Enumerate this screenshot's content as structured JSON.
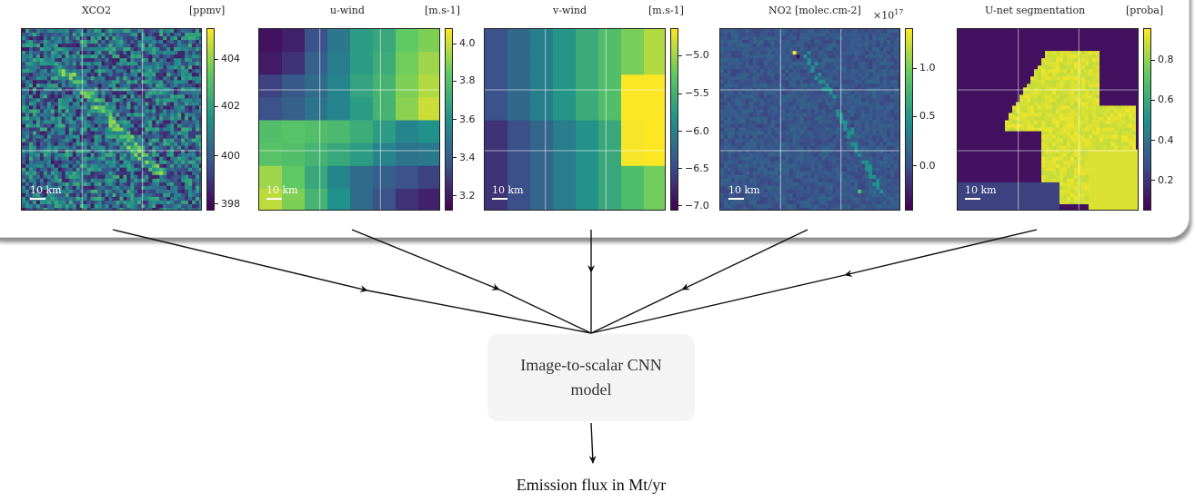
{
  "panels": [
    {
      "title": "XCO2",
      "unit": "[ppmv]",
      "scale_label": "10 km",
      "ticks": [
        {
          "label": "404",
          "frac": 0.17
        },
        {
          "label": "402",
          "frac": 0.43
        },
        {
          "label": "400",
          "frac": 0.7
        },
        {
          "label": "398",
          "frac": 0.965
        }
      ]
    },
    {
      "title": "u-wind",
      "unit": "[m.s-1]",
      "scale_label": "10 km",
      "ticks": [
        {
          "label": "4.0",
          "frac": 0.085
        },
        {
          "label": "3.8",
          "frac": 0.29
        },
        {
          "label": "3.6",
          "frac": 0.5
        },
        {
          "label": "3.4",
          "frac": 0.71
        },
        {
          "label": "3.2",
          "frac": 0.92
        }
      ]
    },
    {
      "title": "v-wind",
      "unit": "[m.s-1]",
      "scale_label": "10 km",
      "ticks": [
        {
          "label": "−5.0",
          "frac": 0.15
        },
        {
          "label": "−5.5",
          "frac": 0.36
        },
        {
          "label": "−6.0",
          "frac": 0.565
        },
        {
          "label": "−6.5",
          "frac": 0.77
        },
        {
          "label": "−7.0",
          "frac": 0.975
        }
      ]
    },
    {
      "title": "NO2 [molec.cm-2]",
      "unit": "",
      "scale_label": "10 km",
      "ticks": [
        {
          "label": "1.0",
          "frac": 0.22
        },
        {
          "label": "0.5",
          "frac": 0.485
        },
        {
          "label": "0.0",
          "frac": 0.755
        }
      ]
    },
    {
      "title": "U-net segmentation",
      "unit": "[proba]",
      "scale_label": "10 km",
      "ticks": [
        {
          "label": "0.8",
          "frac": 0.175
        },
        {
          "label": "0.6",
          "frac": 0.395
        },
        {
          "label": "0.4",
          "frac": 0.615
        },
        {
          "label": "0.2",
          "frac": 0.835
        }
      ]
    }
  ],
  "no2_exponent_base": "×10",
  "no2_exponent_power": "17",
  "model_label": "Image-to-scalar CNN model",
  "output_label": "Emission flux in Mt/yr",
  "colors": {
    "viridis": [
      "#440154",
      "#3b528b",
      "#21918c",
      "#5ec962",
      "#fde725"
    ]
  }
}
